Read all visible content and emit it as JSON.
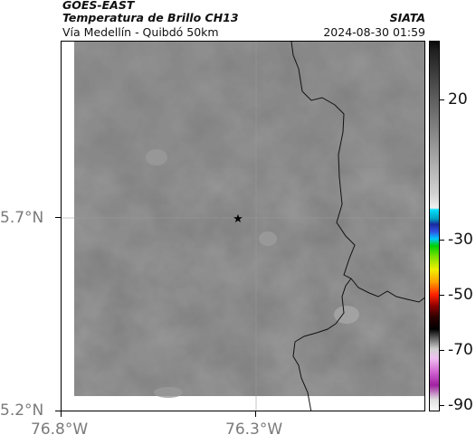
{
  "header": {
    "line1": "GOES-EAST",
    "line2": "Temperatura de Brillo CH13",
    "line3": "Vía Medellín - Quibdó 50km",
    "source": "SIATA",
    "datetime": "2024-08-30 01:59"
  },
  "axes": {
    "y_ticks": [
      "5.7°N",
      "5.2°N"
    ],
    "x_ticks": [
      "76.8°W",
      "76.3°W"
    ]
  },
  "colorbar": {
    "ticks": [
      "20",
      "-30",
      "-50",
      "-70",
      "-90"
    ]
  },
  "colors": {
    "cloud_gray": "#7c7c7c",
    "grid": "#9a9a9a",
    "border_line": "#111111"
  },
  "icons": {
    "marker": "star-icon"
  }
}
